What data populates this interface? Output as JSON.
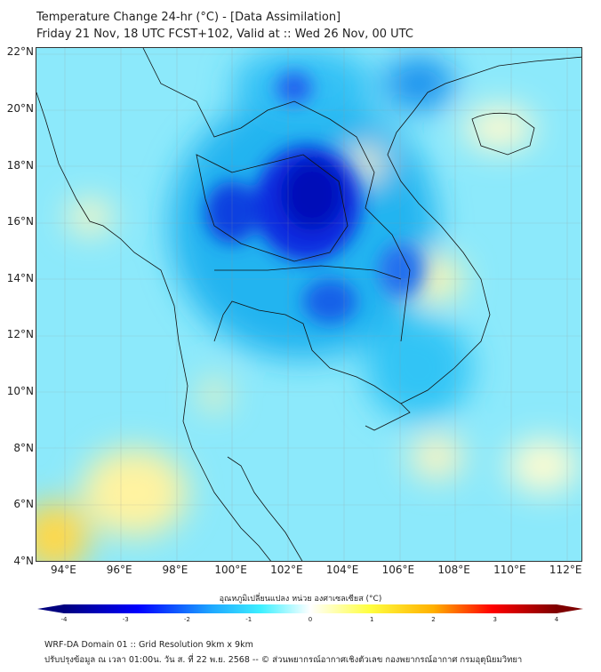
{
  "header": {
    "title": "Temperature Change 24-hr (°C) - [Data Assimilation]",
    "subtitle": "Friday 21 Nov, 18 UTC FCST+102, Valid at :: Wed 26 Nov, 00 UTC"
  },
  "map": {
    "lat_labels": [
      "22°N",
      "20°N",
      "18°N",
      "16°N",
      "14°N",
      "12°N",
      "10°N",
      "8°N",
      "6°N",
      "4°N"
    ],
    "lon_labels": [
      "94°E",
      "96°E",
      "98°E",
      "100°E",
      "102°E",
      "104°E",
      "106°E",
      "108°E",
      "110°E",
      "112°E"
    ],
    "lon_range": [
      93,
      112.6
    ],
    "lat_range": [
      4,
      22.2
    ]
  },
  "colorbar": {
    "title": "อุณหภูมิเปลี่ยนแปลง หน่วย องศาเซลเซียส (°C)",
    "ticks": [
      "-4",
      "-3",
      "-2",
      "-1",
      "0",
      "1",
      "2",
      "3",
      "4"
    ],
    "range": [
      -4,
      4
    ],
    "colors": [
      "#00007f",
      "#0000ff",
      "#00d4ff",
      "#e0ffff",
      "#ffff40",
      "#ff9800",
      "#ff0000",
      "#7f0000"
    ]
  },
  "footer": {
    "line1": "WRF-DA Domain 01 :: Grid Resolution 9km x 9km",
    "line2": "ปรับปรุงข้อมูล ณ เวลา 01:00น. วัน ส. ที่ 22 พ.ย. 2568 -- © ส่วนพยากรณ์อากาศเชิงตัวเลข กองพยากรณ์อากาศ กรมอุตุนิยมวิทยา"
  }
}
